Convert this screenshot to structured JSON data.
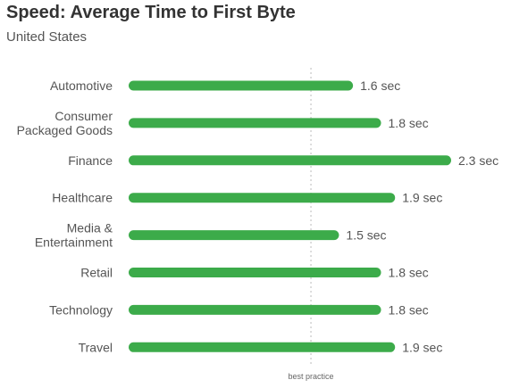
{
  "chart_data": {
    "type": "bar",
    "orientation": "horizontal",
    "title": "Speed: Average Time to First Byte",
    "subtitle": "United States",
    "categories": [
      "Automotive",
      "Consumer Packaged Goods",
      "Finance",
      "Healthcare",
      "Media & Entertainment",
      "Retail",
      "Technology",
      "Travel"
    ],
    "category_lines": [
      [
        "Automotive"
      ],
      [
        "Consumer",
        "Packaged Goods"
      ],
      [
        "Finance"
      ],
      [
        "Healthcare"
      ],
      [
        "Media &",
        "Entertainment"
      ],
      [
        "Retail"
      ],
      [
        "Technology"
      ],
      [
        "Travel"
      ]
    ],
    "values": [
      1.6,
      1.8,
      2.3,
      1.9,
      1.5,
      1.8,
      1.8,
      1.9
    ],
    "value_labels": [
      "1.6 sec",
      "1.8 sec",
      "2.3 sec",
      "1.9 sec",
      "1.5 sec",
      "1.8 sec",
      "1.8 sec",
      "1.9 sec"
    ],
    "xlim": [
      0,
      2.3
    ],
    "grid": false,
    "bar_color": "#3cab4a",
    "reference_line": {
      "label": "best practice",
      "value": 1.3
    }
  }
}
